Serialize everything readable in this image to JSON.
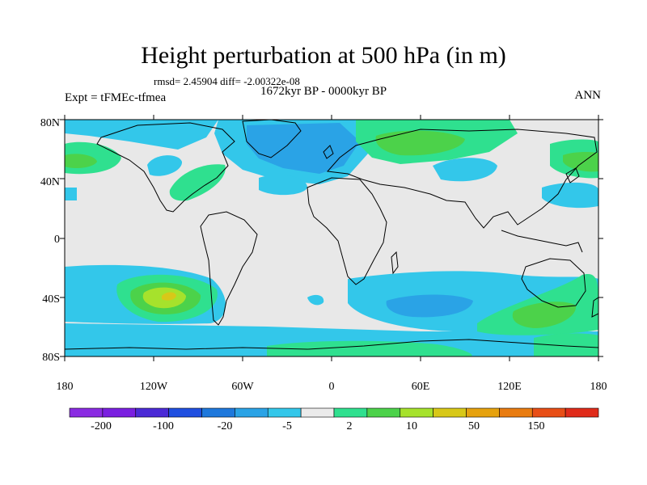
{
  "title": "Height perturbation at 500 hPa (in m)",
  "stats": "rmsd= 2.45904 diff= -2.00322e-08",
  "period": "1672kyr BP - 0000kyr BP",
  "experiment": "Expt = tFMEc-tfmea",
  "season": "ANN",
  "lat_labels": [
    "80N",
    "40N",
    "0",
    "40S",
    "80S"
  ],
  "lon_labels": [
    "180",
    "120W",
    "60W",
    "0",
    "60E",
    "120E",
    "180"
  ],
  "colorbar": {
    "colors": [
      "#8a2be2",
      "#7a1fe0",
      "#4b2ad6",
      "#1f4fe0",
      "#1e78dc",
      "#2aa3e6",
      "#33c7ea",
      "#ebebeb",
      "#2fe08f",
      "#4cd24a",
      "#a6e22c",
      "#d8c818",
      "#e6a20e",
      "#e97c10",
      "#e84e16",
      "#e02b1a"
    ],
    "labels": [
      "-200",
      "-100",
      "-20",
      "-5",
      "2",
      "10",
      "50",
      "150"
    ]
  },
  "colors": {
    "ocean_bg": "#e8e8e8",
    "neg_light": "#33c7ea",
    "neg_mid": "#2aa3e6",
    "pos_light": "#2fe08f",
    "pos_mid": "#4cd24a",
    "pos_high": "#a6e22c",
    "pos_peak": "#d8c818"
  }
}
